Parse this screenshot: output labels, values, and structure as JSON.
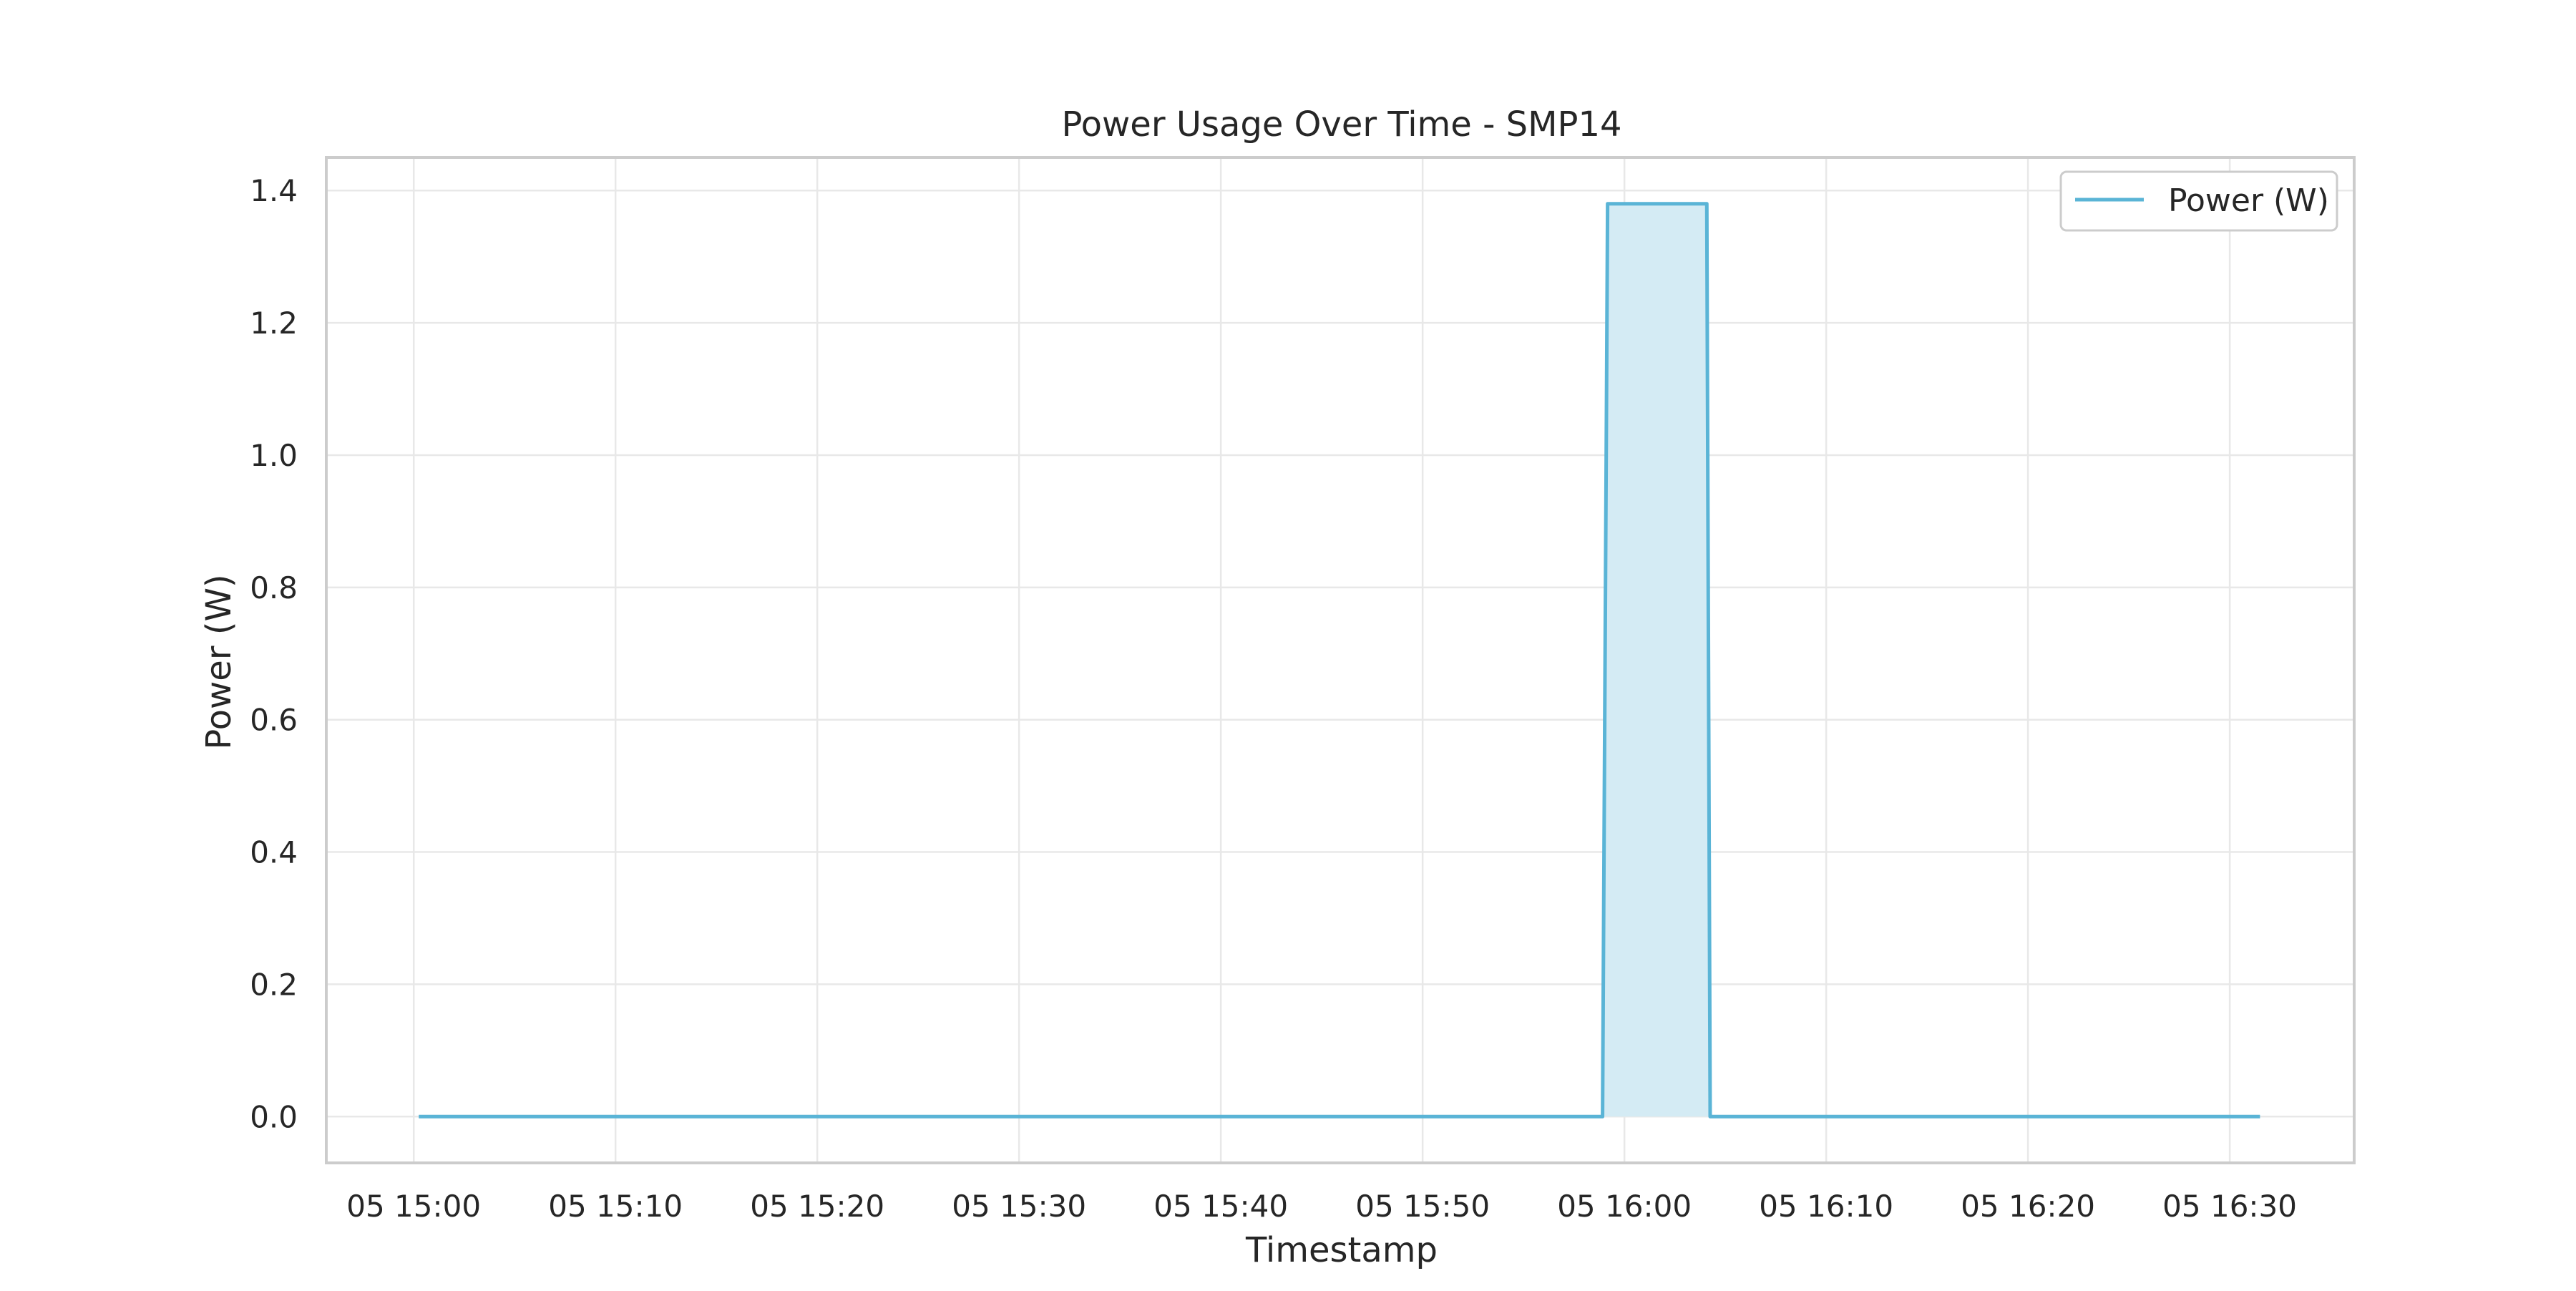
{
  "chart_data": {
    "type": "line",
    "title": "Power Usage Over Time - SMP14",
    "xlabel": "Timestamp",
    "ylabel": "Power (W)",
    "x_range": [
      "05 14:55:40",
      "05 16:36:10"
    ],
    "ylim": [
      -0.07,
      1.45
    ],
    "grid": true,
    "legend": {
      "position": "top-right"
    },
    "x_ticks": [
      {
        "time": "05 15:00",
        "label": "05 15:00"
      },
      {
        "time": "05 15:10",
        "label": "05 15:10"
      },
      {
        "time": "05 15:20",
        "label": "05 15:20"
      },
      {
        "time": "05 15:30",
        "label": "05 15:30"
      },
      {
        "time": "05 15:40",
        "label": "05 15:40"
      },
      {
        "time": "05 15:50",
        "label": "05 15:50"
      },
      {
        "time": "05 16:00",
        "label": "05 16:00"
      },
      {
        "time": "05 16:10",
        "label": "05 16:10"
      },
      {
        "time": "05 16:20",
        "label": "05 16:20"
      },
      {
        "time": "05 16:30",
        "label": "05 16:30"
      }
    ],
    "y_ticks": [
      {
        "value": 0.0,
        "label": "0.0"
      },
      {
        "value": 0.2,
        "label": "0.2"
      },
      {
        "value": 0.4,
        "label": "0.4"
      },
      {
        "value": 0.6,
        "label": "0.6"
      },
      {
        "value": 0.8,
        "label": "0.8"
      },
      {
        "value": 1.0,
        "label": "1.0"
      },
      {
        "value": 1.2,
        "label": "1.2"
      },
      {
        "value": 1.4,
        "label": "1.4"
      }
    ],
    "series": [
      {
        "name": "Power (W)",
        "color": "#5ab4d6",
        "fill_color": "#d4ebf4",
        "points": [
          {
            "x": "05 15:00:15",
            "y": 0.0
          },
          {
            "x": "05 15:58:55",
            "y": 0.0
          },
          {
            "x": "05 15:59:10",
            "y": 1.38
          },
          {
            "x": "05 16:04:05",
            "y": 1.38
          },
          {
            "x": "05 16:04:15",
            "y": 0.0
          },
          {
            "x": "05 16:31:30",
            "y": 0.0
          }
        ]
      }
    ]
  }
}
